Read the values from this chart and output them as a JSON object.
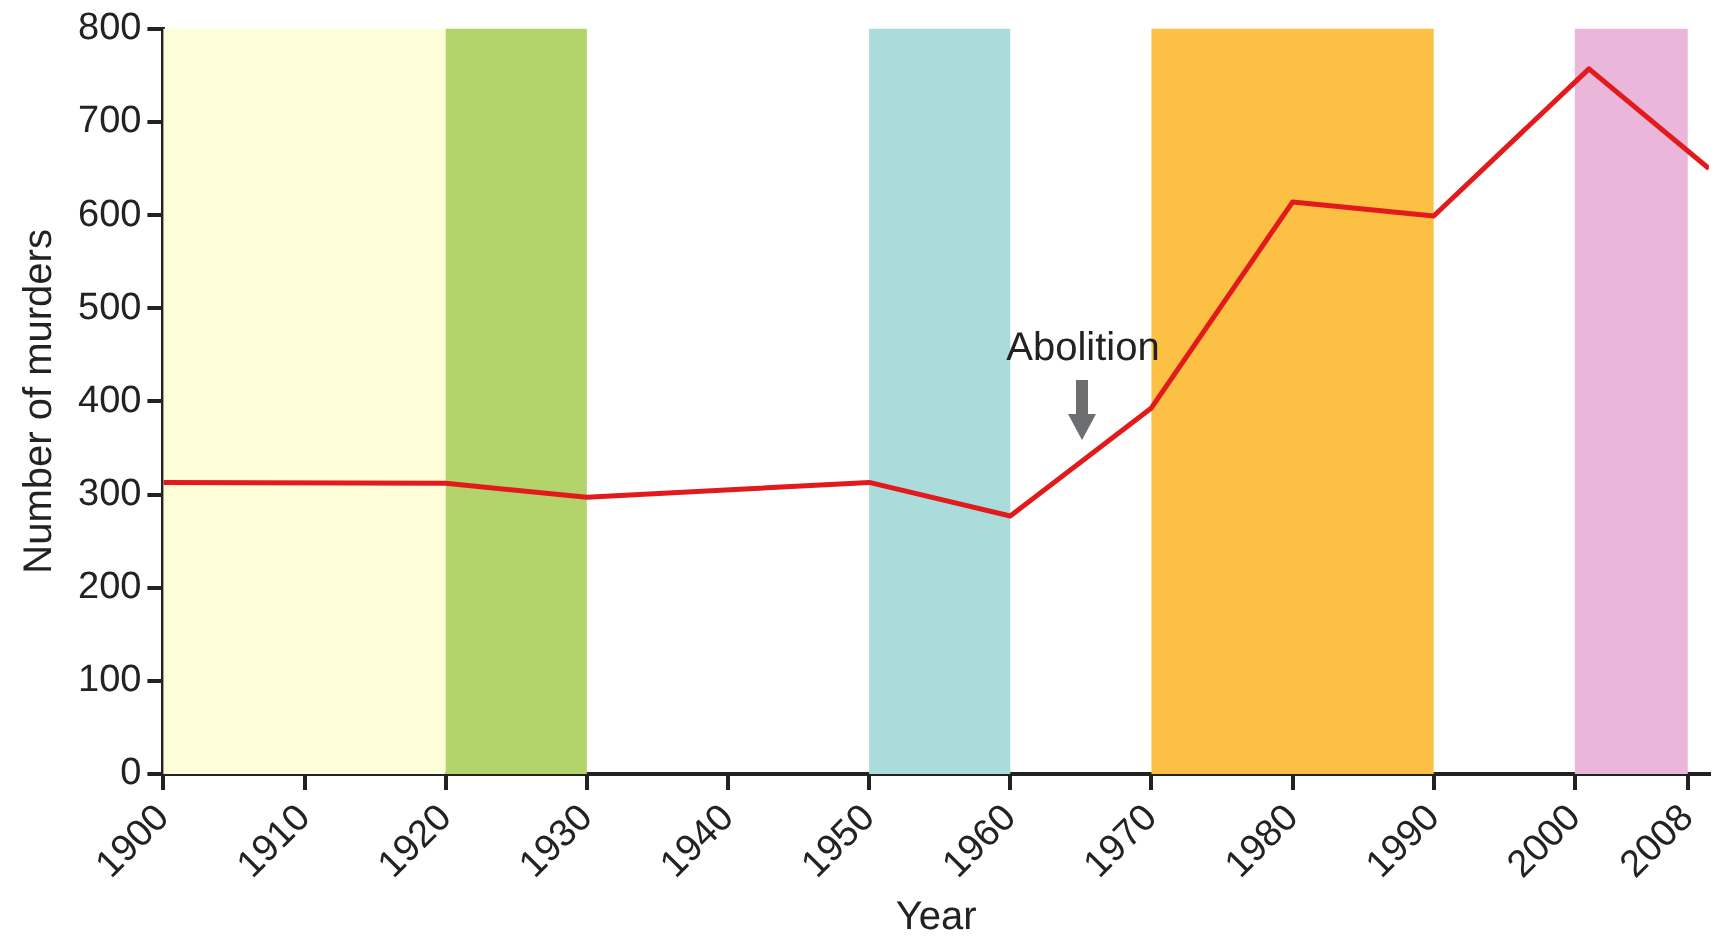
{
  "chart_data": {
    "type": "line",
    "xlabel": "Year",
    "ylabel": "Number of murders",
    "x": [
      1900,
      1920,
      1930,
      1950,
      1960,
      1970,
      1980,
      1990,
      2001,
      2009.5
    ],
    "series": [
      {
        "color": "#e31a1c",
        "values": [
          313,
          312,
          297,
          313,
          277,
          393,
          614,
          599,
          757,
          650
        ]
      }
    ],
    "xlim": [
      1900,
      2009.5
    ],
    "ylim": [
      0,
      800
    ],
    "xticks": [
      1900,
      1910,
      1920,
      1930,
      1940,
      1950,
      1960,
      1970,
      1980,
      1990,
      2000,
      2008
    ],
    "yticks": [
      0,
      100,
      200,
      300,
      400,
      500,
      600,
      700,
      800
    ],
    "bands": [
      {
        "axis": "x",
        "from": 1900,
        "to": 1920,
        "color": "#fdfdd9"
      },
      {
        "axis": "x",
        "from": 1920,
        "to": 1930,
        "color": "#b3d36b"
      },
      {
        "axis": "x",
        "from": 1950,
        "to": 1960,
        "color": "#a9dcdb"
      },
      {
        "axis": "x",
        "from": 1970,
        "to": 1990,
        "color": "#fcc044"
      },
      {
        "axis": "x",
        "from": 2000,
        "to": 2008,
        "color": "#eab6da"
      }
    ],
    "annotations": [
      "Abolition"
    ],
    "grid": false,
    "legend": false,
    "marker": "none",
    "line_style": "solid"
  }
}
